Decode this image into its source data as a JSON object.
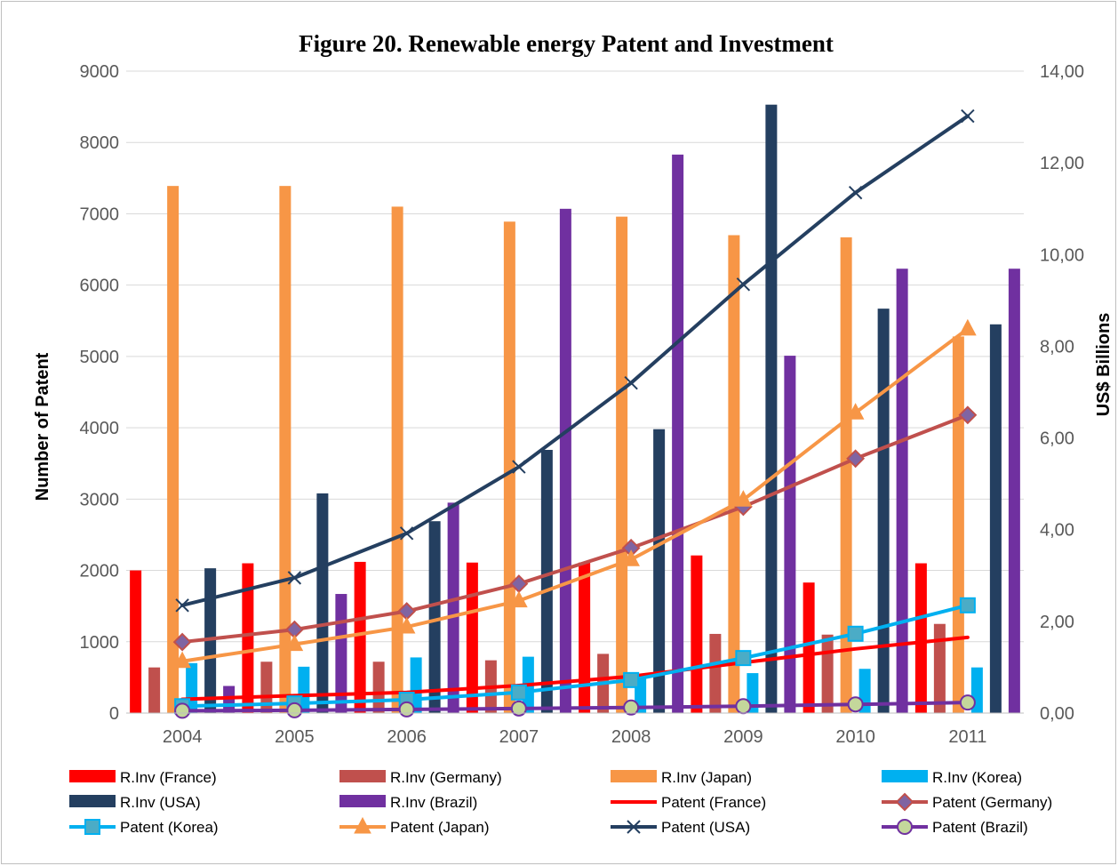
{
  "chart_data": {
    "type": "bar",
    "title": "Figure 20. Renewable energy  Patent and Investment",
    "categories": [
      "2004",
      "2005",
      "2006",
      "2007",
      "2008",
      "2009",
      "2010",
      "2011"
    ],
    "y_left": {
      "label": "Number of Patent",
      "range": [
        0,
        9000
      ],
      "ticks": [
        "0",
        "1000",
        "2000",
        "3000",
        "4000",
        "5000",
        "6000",
        "7000",
        "8000",
        "9000"
      ]
    },
    "y_right": {
      "label": "US$ Billions",
      "range": [
        0,
        14
      ],
      "ticks": [
        "0,00",
        "2,00",
        "4,00",
        "6,00",
        "8,00",
        "10,00",
        "12,00",
        "14,00"
      ]
    },
    "grid": true,
    "legend_position": "bottom",
    "bar_series": [
      {
        "name": "R.Inv (France)",
        "color": "#ff0000",
        "values": [
          2000,
          2100,
          2120,
          2110,
          2110,
          2210,
          1830,
          2100
        ]
      },
      {
        "name": "R.Inv (Germany)",
        "color": "#c0504d",
        "values": [
          640,
          720,
          720,
          740,
          830,
          1110,
          1100,
          1250
        ]
      },
      {
        "name": "R.Inv (Japan)",
        "color": "#f79646",
        "values": [
          7390,
          7390,
          7100,
          6890,
          6960,
          6700,
          6670,
          5280
        ]
      },
      {
        "name": "R.Inv (Korea)",
        "color": "#00b0f0",
        "values": [
          700,
          650,
          780,
          790,
          480,
          560,
          620,
          640
        ]
      },
      {
        "name": "R.Inv (USA)",
        "color": "#243f60",
        "values": [
          2030,
          3080,
          2690,
          3690,
          3980,
          8530,
          5670,
          5450
        ]
      },
      {
        "name": "R.Inv (Brazil)",
        "color": "#7030a0",
        "values": [
          380,
          1670,
          2950,
          7070,
          7830,
          5010,
          6230,
          6230
        ]
      }
    ],
    "line_series": [
      {
        "name": "Patent (France)",
        "color": "#ff0000",
        "marker": "none",
        "values": [
          0.3,
          0.38,
          0.45,
          0.6,
          0.8,
          1.1,
          1.4,
          1.65
        ]
      },
      {
        "name": "Patent (Germany)",
        "color": "#c0504d",
        "marker": "diamond",
        "values": [
          1.55,
          1.82,
          2.22,
          2.82,
          3.6,
          4.5,
          5.55,
          6.5
        ]
      },
      {
        "name": "Patent (Korea)",
        "color": "#00b0f0",
        "marker": "square",
        "values": [
          0.15,
          0.21,
          0.29,
          0.45,
          0.72,
          1.2,
          1.73,
          2.35
        ]
      },
      {
        "name": "Patent (Japan)",
        "color": "#f79646",
        "marker": "triangle",
        "values": [
          1.13,
          1.5,
          1.88,
          2.45,
          3.35,
          4.65,
          6.55,
          8.38
        ]
      },
      {
        "name": "Patent (USA)",
        "color": "#243f60",
        "marker": "x",
        "values": [
          2.35,
          2.95,
          3.92,
          5.37,
          7.2,
          9.35,
          11.35,
          13.02
        ]
      },
      {
        "name": "Patent (Brazil)",
        "color": "#7030a0",
        "marker": "circle",
        "values": [
          0.05,
          0.06,
          0.08,
          0.1,
          0.12,
          0.15,
          0.19,
          0.23
        ]
      }
    ]
  }
}
